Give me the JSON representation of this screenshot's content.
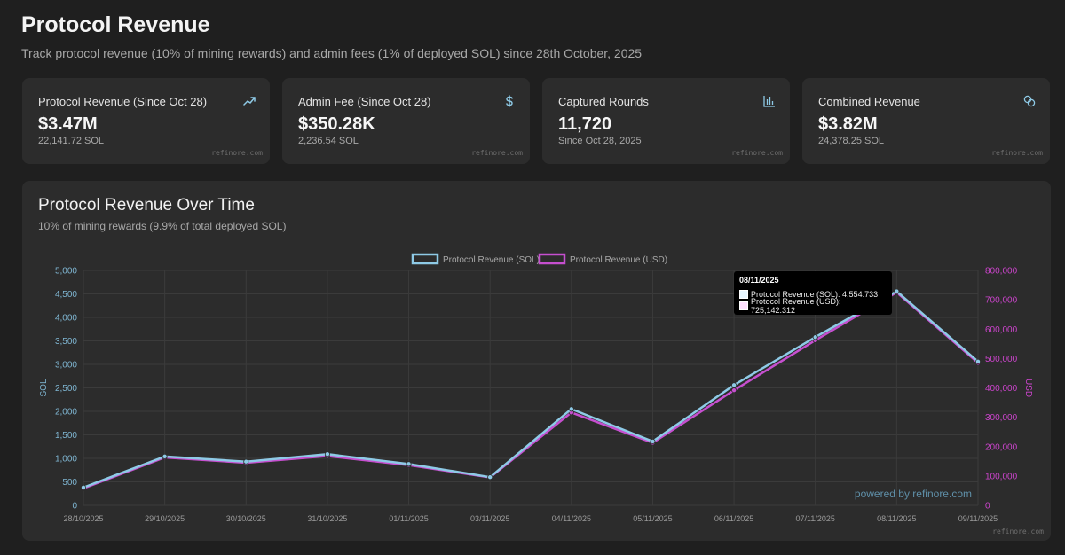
{
  "header": {
    "title": "Protocol Revenue",
    "subtitle": "Track protocol revenue (10% of mining rewards) and admin fees (1% of deployed SOL) since 28th October, 2025"
  },
  "cards": [
    {
      "label": "Protocol Revenue (Since Oct 28)",
      "value": "$3.47M",
      "sub": "22,141.72 SOL",
      "brand": "refinore.com",
      "icon": "trending-up-icon"
    },
    {
      "label": "Admin Fee (Since Oct 28)",
      "value": "$350.28K",
      "sub": "2,236.54 SOL",
      "brand": "refinore.com",
      "icon": "dollar-icon"
    },
    {
      "label": "Captured Rounds",
      "value": "11,720",
      "sub": "Since Oct 28, 2025",
      "brand": "refinore.com",
      "icon": "bar-chart-icon"
    },
    {
      "label": "Combined Revenue",
      "value": "$3.82M",
      "sub": "24,378.25 SOL",
      "brand": "refinore.com",
      "icon": "coins-icon"
    }
  ],
  "colors": {
    "sol": "#8ecae6",
    "usd": "#c64fcf",
    "sol_axis": "#7fb6d2",
    "usd_axis": "#cc44cc"
  },
  "chart_panel": {
    "title": "Protocol Revenue Over Time",
    "subtitle": "10% of mining rewards (9.9% of total deployed SOL)",
    "powered": "powered by refinore.com",
    "brand": "refinore.com"
  },
  "tooltip": {
    "title": "08/11/2025",
    "rows": [
      "Protocol Revenue (SOL): 4,554.733",
      "Protocol Revenue (USD): 725,142.312"
    ]
  },
  "chart_data": {
    "type": "line",
    "x": [
      "28/10/2025",
      "29/10/2025",
      "30/10/2025",
      "31/10/2025",
      "01/11/2025",
      "03/11/2025",
      "04/11/2025",
      "05/11/2025",
      "06/11/2025",
      "07/11/2025",
      "08/11/2025",
      "09/11/2025"
    ],
    "series": [
      {
        "name": "Protocol Revenue (SOL)",
        "axis": "left",
        "values": [
          380,
          1040,
          930,
          1090,
          880,
          600,
          2050,
          1360,
          2560,
          3580,
          4554.733,
          3060
        ]
      },
      {
        "name": "Protocol Revenue (USD)",
        "axis": "right",
        "values": [
          58000,
          163000,
          145000,
          168000,
          137000,
          95000,
          316000,
          213000,
          392000,
          562000,
          725142.312,
          485000
        ]
      }
    ],
    "ylabel": "SOL",
    "y2label": "USD",
    "ylim": [
      0,
      5000
    ],
    "y2lim": [
      0,
      800000
    ],
    "yticks": [
      "0",
      "500",
      "1,000",
      "1,500",
      "2,000",
      "2,500",
      "3,000",
      "3,500",
      "4,000",
      "4,500",
      "5,000"
    ],
    "y2ticks": [
      "0",
      "100,000",
      "200,000",
      "300,000",
      "400,000",
      "500,000",
      "600,000",
      "700,000",
      "800,000"
    ],
    "legend": "top-center",
    "grid": true
  }
}
